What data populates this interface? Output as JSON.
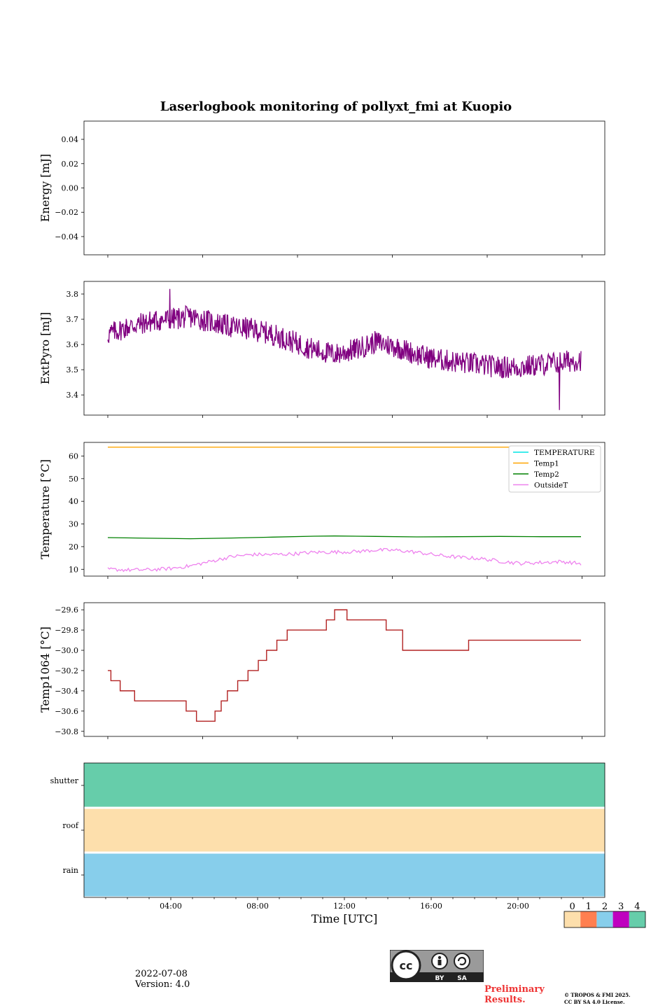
{
  "title": "Laserlogbook monitoring of pollyxt_fmi at Kuopio",
  "colors": {
    "extpyro": "#800080",
    "temperature": "#00e5e5",
    "temp1": "#ffa500",
    "temp2": "#008000",
    "outside": "#ee82ee",
    "temp1064": "#b22222",
    "flag_colors": [
      "#fddfac",
      "#ff7f50",
      "#87ceeb",
      "#bf00bf",
      "#66cdaa"
    ]
  },
  "chart_data": [
    {
      "type": "line",
      "name": "energy",
      "ylabel": "Energy [mJ]",
      "yticks": [
        0.04,
        0.02,
        0.0,
        -0.02,
        -0.04
      ],
      "ytick_labels": [
        "0.04",
        "0.02",
        "0.00",
        "−0.02",
        "−0.04"
      ],
      "ylim": [
        -0.055,
        0.055
      ],
      "series": []
    },
    {
      "type": "line",
      "name": "extpyro",
      "ylabel": "ExtPyro [mJ]",
      "yticks": [
        3.8,
        3.7,
        3.6,
        3.5,
        3.4
      ],
      "ytick_labels": [
        "3.8",
        "3.7",
        "3.6",
        "3.5",
        "3.4"
      ],
      "ylim": [
        3.32,
        3.85
      ],
      "series": [
        {
          "name": "ExtPyro",
          "x": [
            1.0,
            2.0,
            3.0,
            4.0,
            5.0,
            6.0,
            7.0,
            8.0,
            9.0,
            10.0,
            11.0,
            12.0,
            13.0,
            14.0,
            15.0,
            16.0,
            17.0,
            18.0,
            19.0,
            20.0,
            21.0,
            22.0,
            23.0,
            23.95
          ],
          "y": [
            3.64,
            3.67,
            3.69,
            3.7,
            3.71,
            3.69,
            3.67,
            3.66,
            3.64,
            3.61,
            3.58,
            3.56,
            3.58,
            3.61,
            3.59,
            3.56,
            3.54,
            3.53,
            3.52,
            3.51,
            3.51,
            3.52,
            3.53,
            3.54
          ],
          "noise": 0.045,
          "min_point": [
            22.9,
            3.34
          ],
          "max_point": [
            4.0,
            3.82
          ]
        }
      ]
    },
    {
      "type": "line",
      "name": "temperature",
      "ylabel": "Temperature [°C]",
      "yticks": [
        60,
        50,
        40,
        30,
        20,
        10
      ],
      "ytick_labels": [
        "60",
        "50",
        "40",
        "30",
        "20",
        "10"
      ],
      "ylim": [
        7,
        66
      ],
      "legend": {
        "placement": "top-right",
        "entries": [
          "TEMPERATURE",
          "Temp1",
          "Temp2",
          "OutsideT"
        ]
      },
      "series": [
        {
          "name": "TEMPERATURE",
          "x": [],
          "y": []
        },
        {
          "name": "Temp1",
          "x": [
            1.0,
            23.95
          ],
          "y": [
            63.9,
            63.9
          ]
        },
        {
          "name": "Temp2",
          "x": [
            1.0,
            3.0,
            5.0,
            7.0,
            9.0,
            11.0,
            12.0,
            14.0,
            16.0,
            18.0,
            20.0,
            22.0,
            23.95
          ],
          "y": [
            24.0,
            23.7,
            23.5,
            23.8,
            24.2,
            24.6,
            24.7,
            24.5,
            24.3,
            24.4,
            24.5,
            24.4,
            24.4
          ]
        },
        {
          "name": "OutsideT",
          "x": [
            1.0,
            2.0,
            3.0,
            4.0,
            5.0,
            6.0,
            7.0,
            8.0,
            9.0,
            10.0,
            11.0,
            12.0,
            13.0,
            14.0,
            15.0,
            16.0,
            17.0,
            18.0,
            19.0,
            20.0,
            21.0,
            22.0,
            23.0,
            23.95
          ],
          "y": [
            10.0,
            9.7,
            9.8,
            10.3,
            11.5,
            13.5,
            15.6,
            16.5,
            16.5,
            16.8,
            17.5,
            17.6,
            17.8,
            18.5,
            18.4,
            17.5,
            16.2,
            15.3,
            14.8,
            13.6,
            12.6,
            13.0,
            13.4,
            12.5
          ],
          "noise": 0.8
        }
      ]
    },
    {
      "type": "line",
      "name": "temp1064",
      "ylabel": "Temp1064 [°C]",
      "yticks": [
        -29.6,
        -29.8,
        -30.0,
        -30.2,
        -30.4,
        -30.6,
        -30.8
      ],
      "ytick_labels": [
        "−29.6",
        "−29.8",
        "−30.0",
        "−30.2",
        "−30.4",
        "−30.6",
        "−30.8"
      ],
      "ylim": [
        -30.85,
        -29.53
      ],
      "series": [
        {
          "name": "Temp1064",
          "x": [
            1.0,
            1.15,
            1.6,
            2.3,
            2.7,
            4.8,
            5.3,
            6.2,
            6.5,
            6.8,
            7.3,
            7.8,
            8.3,
            8.7,
            9.2,
            9.7,
            11.0,
            11.6,
            12.0,
            12.6,
            14.5,
            15.3,
            17.5,
            18.5,
            23.95
          ],
          "y": [
            -30.2,
            -30.3,
            -30.4,
            -30.5,
            -30.5,
            -30.6,
            -30.7,
            -30.6,
            -30.5,
            -30.4,
            -30.3,
            -30.2,
            -30.1,
            -30.0,
            -29.9,
            -29.8,
            -29.8,
            -29.7,
            -29.6,
            -29.7,
            -29.8,
            -30.0,
            -30.0,
            -29.9,
            -29.9
          ]
        }
      ]
    },
    {
      "type": "heatmap",
      "name": "flags",
      "rows": [
        "shutter",
        "roof",
        "rain"
      ],
      "row_values": [
        4,
        0,
        2
      ],
      "xlabel": "Time [UTC]",
      "xticks": [
        4,
        8,
        12,
        16,
        20
      ],
      "xtick_labels": [
        "04:00",
        "08:00",
        "12:00",
        "16:00",
        "20:00"
      ],
      "xlim": [
        0,
        24
      ],
      "colorbar": {
        "ticks": [
          "0",
          "1",
          "2",
          "3",
          "4"
        ]
      }
    }
  ],
  "footer": {
    "date": "2022-07-08",
    "version": "Version: 4.0",
    "preliminary_1": "Preliminary",
    "preliminary_2": "Results.",
    "copyright_1": "© TROPOS & FMI 2025.",
    "copyright_2": "CC BY SA 4.0 License.",
    "cc_labels": [
      "BY",
      "SA"
    ]
  }
}
